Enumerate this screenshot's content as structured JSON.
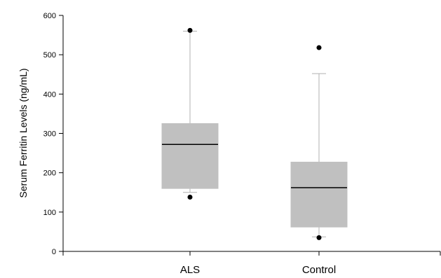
{
  "chart_data": {
    "type": "box",
    "title": "",
    "xlabel": "",
    "ylabel": "Serum Ferritin Levels (ng/mL)",
    "ylim": [
      0,
      600
    ],
    "yticks": [
      0,
      100,
      200,
      300,
      400,
      500,
      600
    ],
    "categories": [
      "ALS",
      "Control"
    ],
    "boxes": [
      {
        "category": "ALS",
        "whisker_low": 150,
        "q1": 160,
        "median": 272,
        "q3": 325,
        "whisker_high": 560,
        "outliers": [
          138,
          562
        ]
      },
      {
        "category": "Control",
        "whisker_low": 37,
        "q1": 62,
        "median": 162,
        "q3": 227,
        "whisker_high": 452,
        "outliers": [
          35,
          518
        ]
      }
    ],
    "grid": false,
    "colors": {
      "box_fill": "#c0c0c0",
      "whisker": "#b0b0b0",
      "median": "#000000",
      "outlier": "#000000",
      "axis": "#000000"
    }
  }
}
